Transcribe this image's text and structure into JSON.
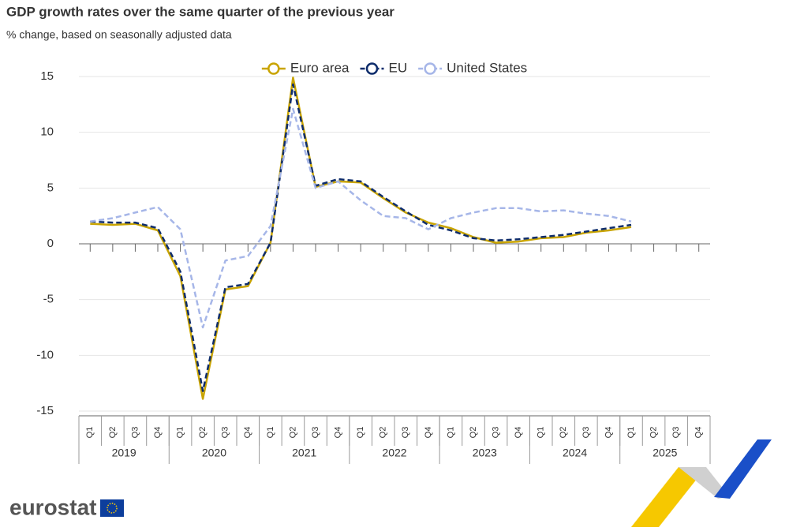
{
  "chart_data": {
    "type": "line",
    "title": "GDP growth rates over the same quarter of the previous year",
    "subtitle": "% change, based on seasonally adjusted data",
    "categories": [
      "Q1",
      "Q2",
      "Q3",
      "Q4",
      "Q1",
      "Q2",
      "Q3",
      "Q4",
      "Q1",
      "Q2",
      "Q3",
      "Q4",
      "Q1",
      "Q2",
      "Q3",
      "Q4",
      "Q1",
      "Q2",
      "Q3",
      "Q4",
      "Q1",
      "Q2",
      "Q3",
      "Q4",
      "Q1",
      "Q2",
      "Q3",
      "Q4"
    ],
    "years": [
      "2019",
      "2020",
      "2021",
      "2022",
      "2023",
      "2024",
      "2025"
    ],
    "ylim": [
      -15,
      15
    ],
    "yticks": [
      -15,
      -10,
      -5,
      0,
      5,
      10,
      15
    ],
    "grid": true,
    "legend": "top",
    "series": [
      {
        "name": "Euro area",
        "color": "#c9a400",
        "dash": false,
        "values": [
          1.8,
          1.7,
          1.8,
          1.2,
          -2.9,
          -13.9,
          -4.1,
          -3.8,
          0.1,
          14.9,
          5.1,
          5.6,
          5.5,
          4.1,
          2.8,
          1.9,
          1.4,
          0.6,
          0.1,
          0.2,
          0.5,
          0.6,
          1.0,
          1.2,
          1.5,
          null,
          null,
          null
        ]
      },
      {
        "name": "EU",
        "color": "#0e2c6b",
        "dash": true,
        "values": [
          2.0,
          1.9,
          1.9,
          1.4,
          -2.5,
          -13.2,
          -3.9,
          -3.6,
          0.1,
          14.3,
          5.2,
          5.8,
          5.6,
          4.2,
          2.9,
          1.7,
          1.2,
          0.5,
          0.3,
          0.4,
          0.6,
          0.8,
          1.1,
          1.4,
          1.7,
          null,
          null,
          null
        ]
      },
      {
        "name": "United States",
        "color": "#a6b6e8",
        "dash": true,
        "values": [
          2.0,
          2.3,
          2.8,
          3.3,
          1.3,
          -7.5,
          -1.5,
          -1.1,
          1.6,
          12.1,
          5.0,
          5.6,
          3.9,
          2.5,
          2.3,
          1.3,
          2.3,
          2.8,
          3.2,
          3.2,
          2.9,
          3.0,
          2.7,
          2.5,
          2.0,
          null,
          null,
          null
        ]
      }
    ]
  },
  "branding": "eurostat"
}
